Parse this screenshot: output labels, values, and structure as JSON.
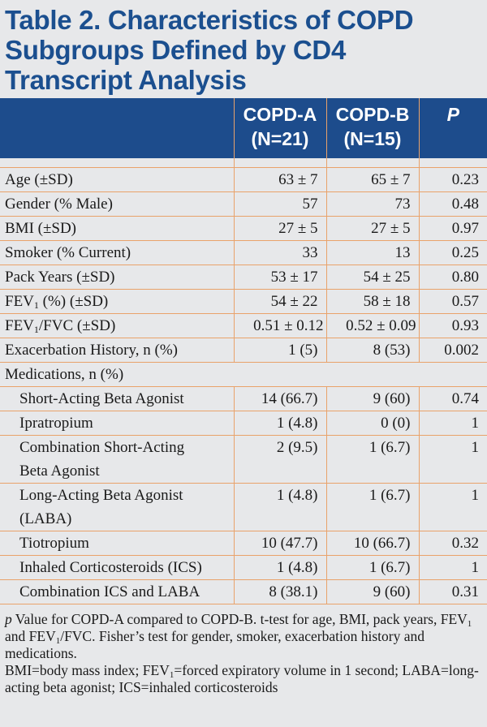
{
  "title": {
    "line1": "Table 2.  Characteristics of COPD",
    "line2": "Subgroups Defined by CD4",
    "line3": "Transcript Analysis"
  },
  "columns": {
    "col_a_line1": "COPD-A",
    "col_a_line2": "(N=21)",
    "col_b_line1": "COPD-B",
    "col_b_line2": "(N=15)",
    "col_p": "P"
  },
  "rows": [
    {
      "label": "Age (±SD)",
      "a": "63 ± 7",
      "b": "65 ± 7",
      "p": "0.23"
    },
    {
      "label": "Gender (% Male)",
      "a": "57",
      "b": "73",
      "p": "0.48"
    },
    {
      "label": "BMI (±SD)",
      "a": "27 ± 5",
      "b": "27 ± 5",
      "p": "0.97"
    },
    {
      "label": "Smoker (% Current)",
      "a": "33",
      "b": "13",
      "p": "0.25"
    },
    {
      "label": "Pack Years (±SD)",
      "a": "53 ± 17",
      "b": "54 ± 25",
      "p": "0.80"
    },
    {
      "label_pre": "FEV",
      "label_sub": "1",
      "label_post": " (%) (±SD)",
      "a": "54 ± 22",
      "b": "58 ± 18",
      "p": "0.57"
    },
    {
      "label_pre": "FEV",
      "label_sub": "1",
      "label_post": "/FVC (±SD)",
      "a": "0.51 ± 0.12",
      "b": "0.52 ± 0.09",
      "p": "0.93"
    },
    {
      "label": "Exacerbation History, n (%)",
      "a": "1 (5)",
      "b": "8 (53)",
      "p": "0.002"
    }
  ],
  "medications_header": "Medications, n (%)",
  "medications": [
    {
      "label": "Short-Acting Beta Agonist",
      "a": "14 (66.7)",
      "b": "9 (60)",
      "p": "0.74"
    },
    {
      "label": "Ipratropium",
      "a": "1 (4.8)",
      "b": "0 (0)",
      "p": "1"
    },
    {
      "label": "Combination Short-Acting",
      "label2": "Beta Agonist",
      "a": "2 (9.5)",
      "b": "1 (6.7)",
      "p": "1"
    },
    {
      "label": "Long-Acting Beta Agonist",
      "label2": "(LABA)",
      "a": "1 (4.8)",
      "b": "1 (6.7)",
      "p": "1"
    },
    {
      "label": "Tiotropium",
      "a": "10 (47.7)",
      "b": "10 (66.7)",
      "p": "0.32"
    },
    {
      "label": "Inhaled Corticosteroids (ICS)",
      "a": "1 (4.8)",
      "b": "1 (6.7)",
      "p": "1"
    },
    {
      "label": "Combination ICS and LABA",
      "a": "8 (38.1)",
      "b": "9 (60)",
      "p": "0.31"
    }
  ],
  "footnote": {
    "p_italic": "p",
    "f1a": " Value for COPD-A compared to COPD-B.  t-test for age, BMI, pack years, FEV",
    "f1_sub1": "1",
    "f1b": " and FEV",
    "f1_sub2": "1",
    "f1c": "/FVC.   Fisher’s test for gender, smoker, exacerbation history and medications.",
    "f2a": "BMI=body mass index; FEV",
    "f2_sub": "1",
    "f2b": "=forced expiratory volume in 1 second; LABA=long-acting beta agonist; ICS=inhaled corticosteroids"
  }
}
